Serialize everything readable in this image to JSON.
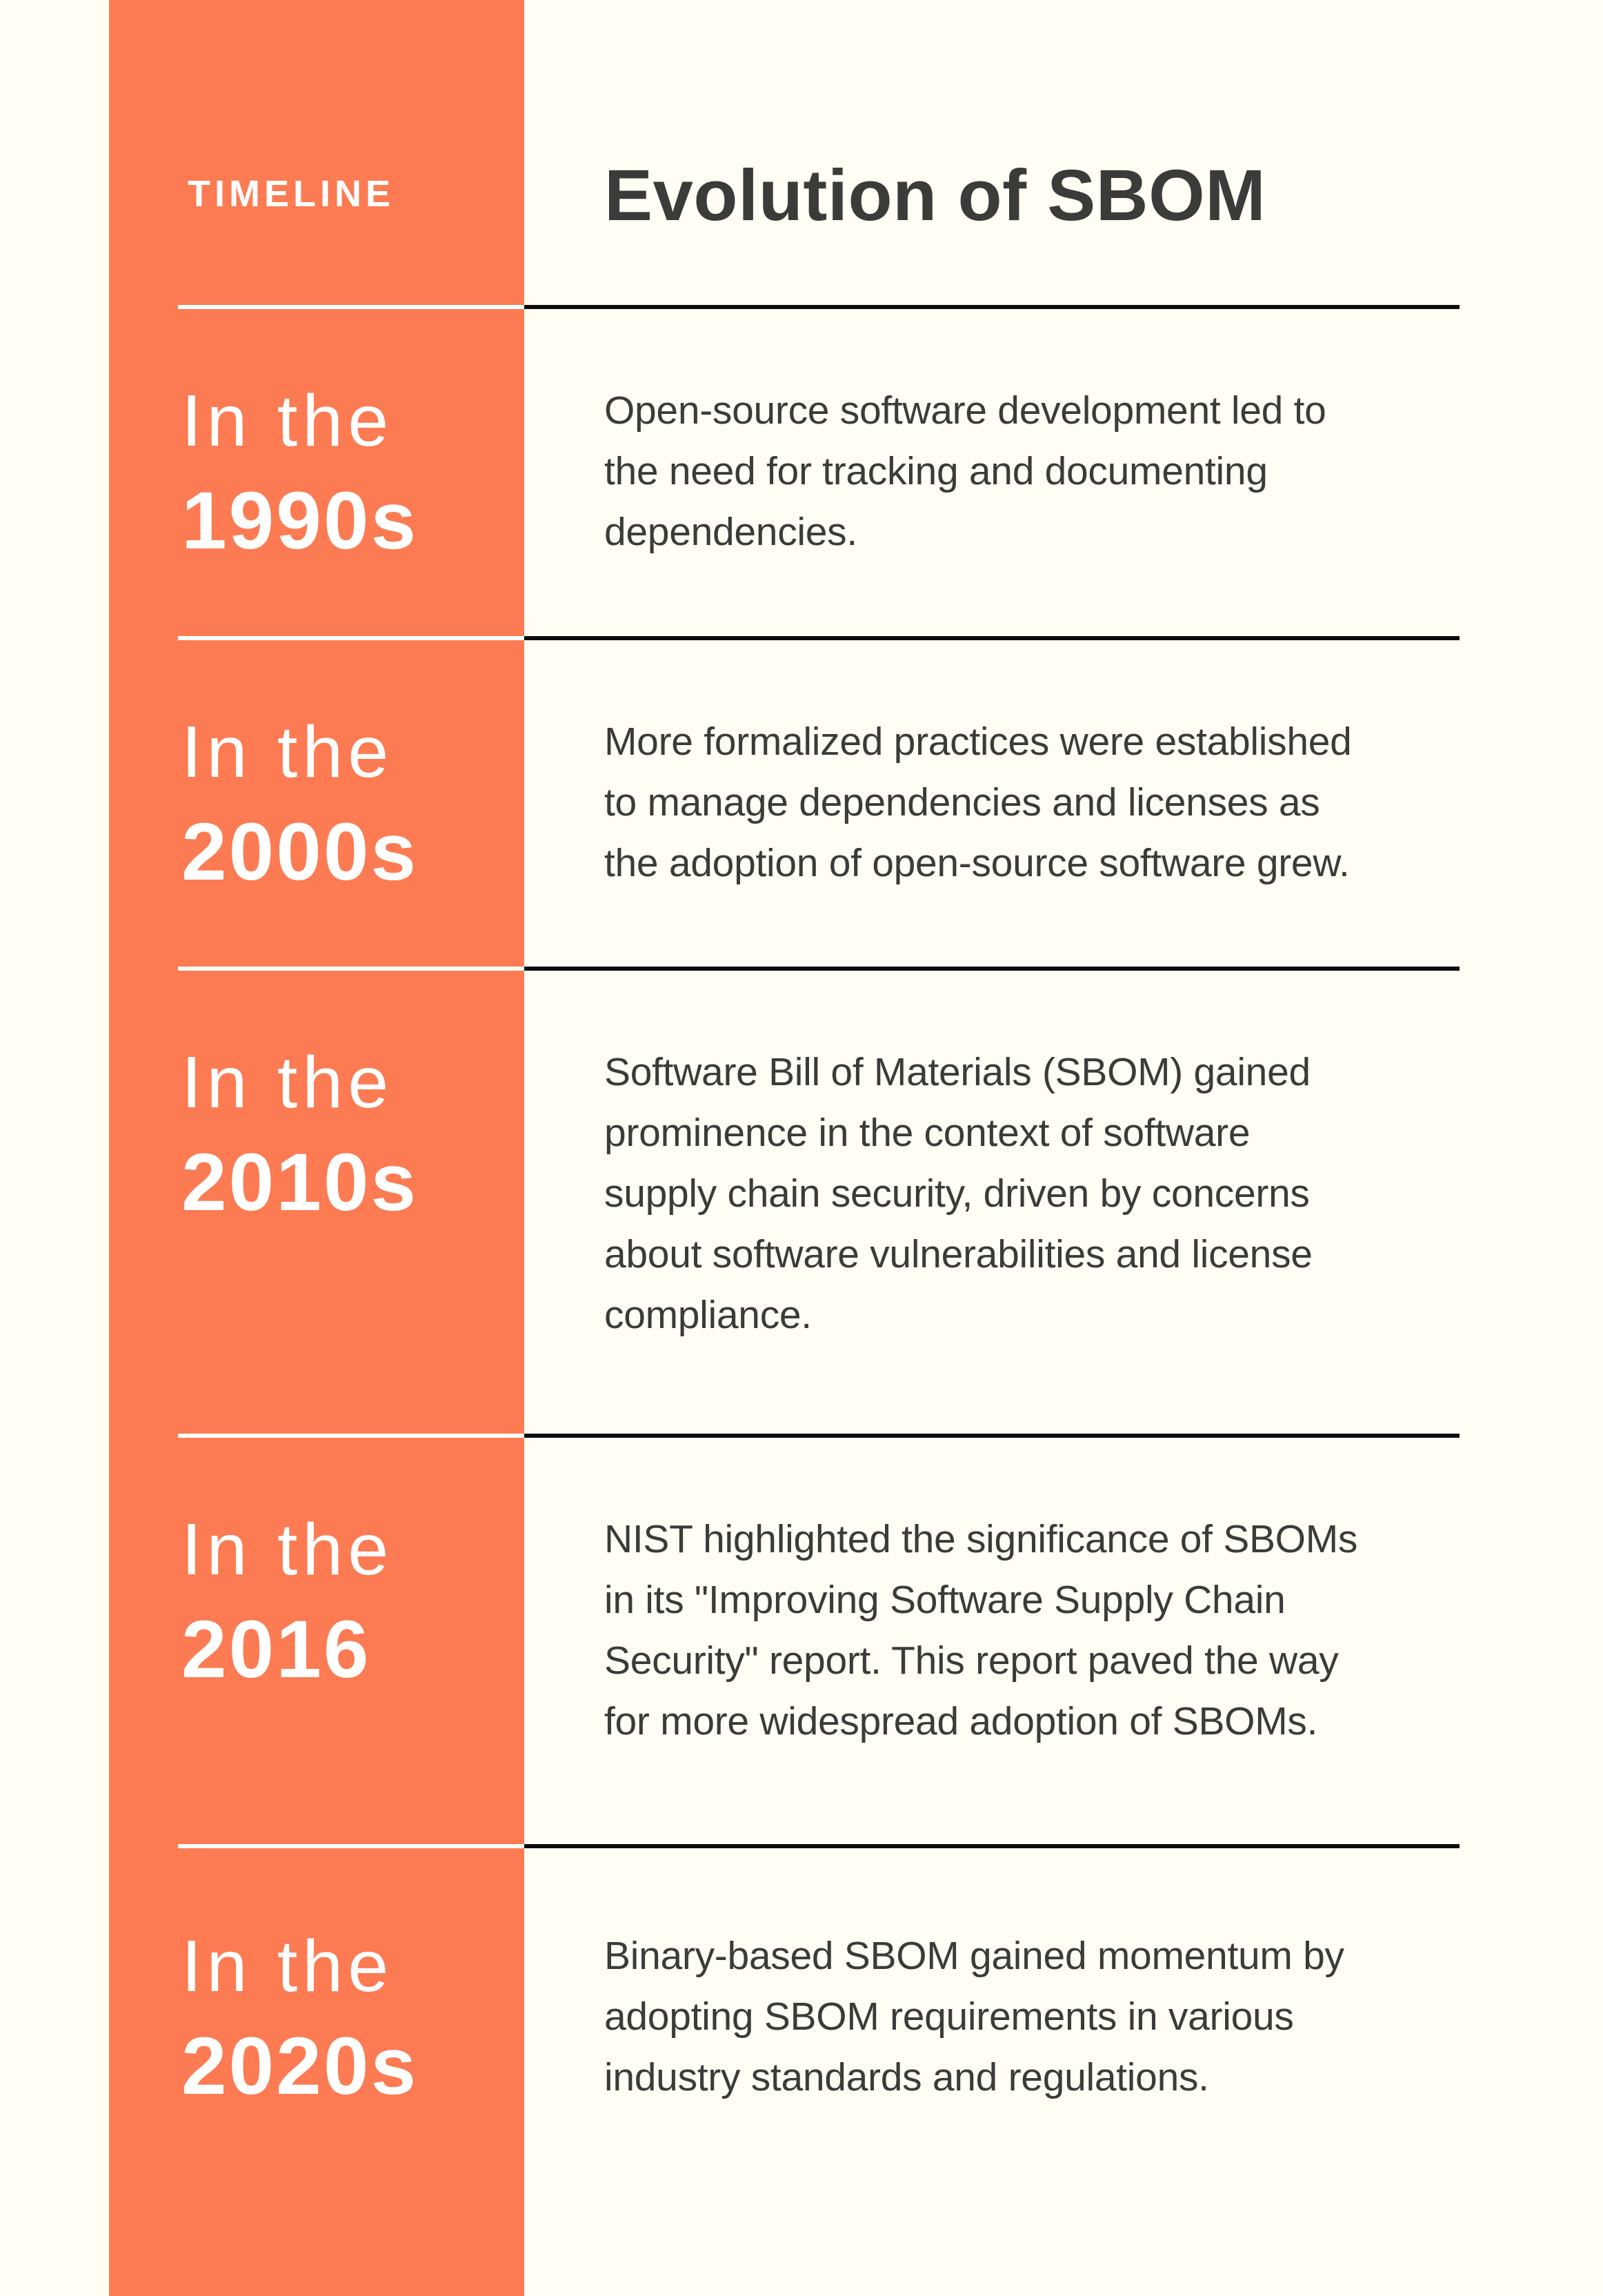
{
  "theme": {
    "accent": "#FC7B52",
    "bg": "#FFFDF4",
    "ink": "#3B3B39",
    "divider": "#0D0D0D",
    "white": "#FFFFFF"
  },
  "header": {
    "eyebrow": "TIMELINE",
    "title": "Evolution of SBOM"
  },
  "rows": [
    {
      "era_prefix": "In the",
      "year": "1990s",
      "lines": [
        "Open-source software development led to",
        "the need for tracking and documenting",
        "dependencies."
      ]
    },
    {
      "era_prefix": "In the",
      "year": "2000s",
      "lines": [
        "More formalized practices were established",
        "to manage dependencies and licenses as",
        "the adoption of open-source software grew."
      ]
    },
    {
      "era_prefix": "In the",
      "year": "2010s",
      "lines": [
        "Software Bill of Materials (SBOM) gained",
        "prominence in the context of software",
        "supply chain security, driven by concerns",
        "about software vulnerabilities and license",
        "compliance."
      ]
    },
    {
      "era_prefix": "In the",
      "year": "2016",
      "lines": [
        "NIST highlighted the significance of SBOMs",
        "in its \"Improving Software Supply Chain",
        "Security\" report. This report paved the way",
        "for more widespread adoption of SBOMs."
      ]
    },
    {
      "era_prefix": "In the",
      "year": "2020s",
      "lines": [
        "Binary-based SBOM gained momentum by",
        "adopting SBOM requirements in various",
        "industry standards and regulations."
      ]
    }
  ]
}
